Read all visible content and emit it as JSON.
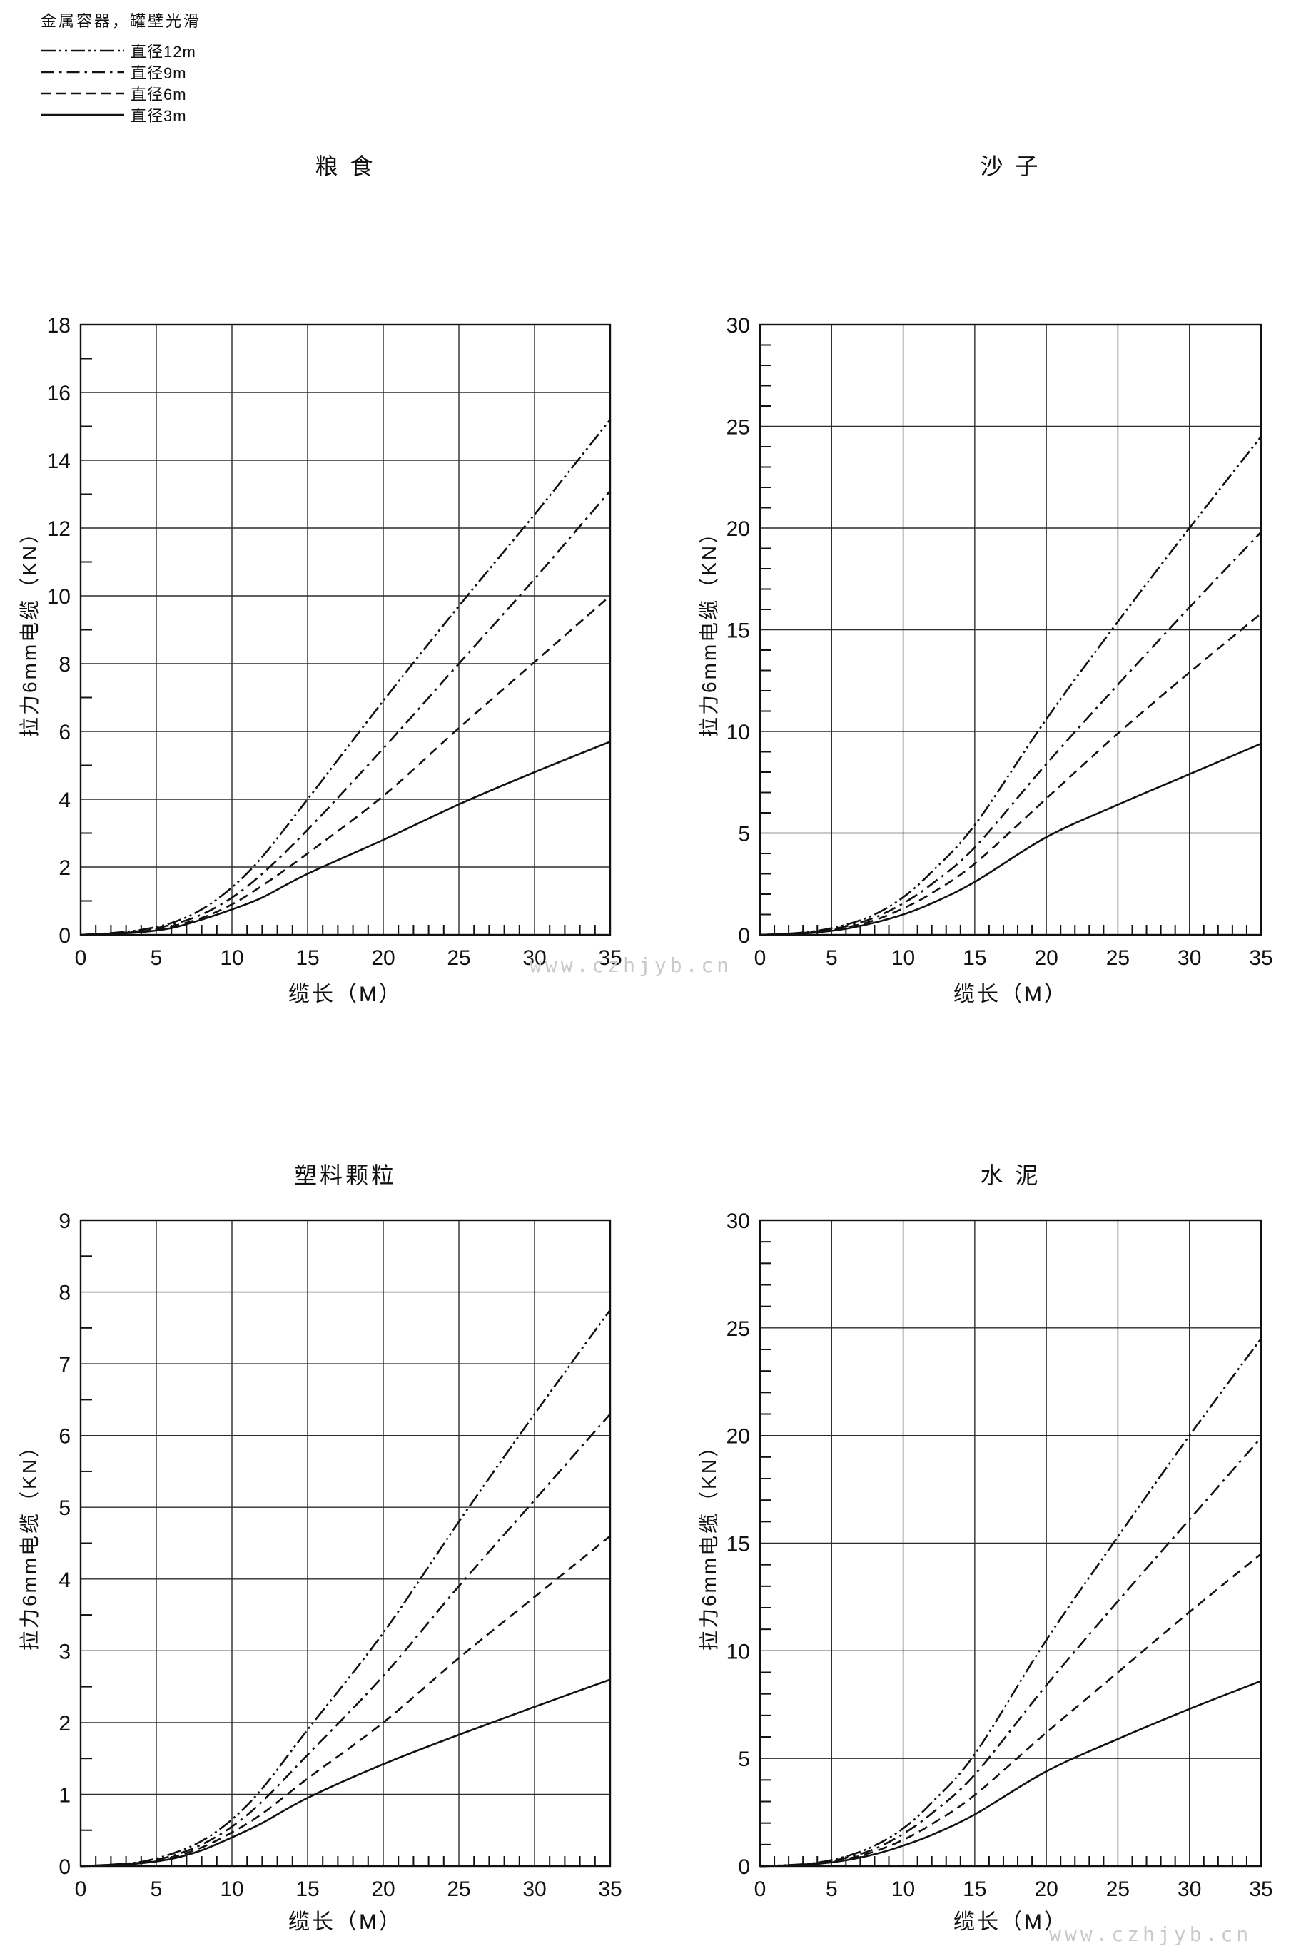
{
  "page": {
    "background": "#ffffff",
    "ink": "#111111",
    "grid_color": "#2b2b2b"
  },
  "watermark": {
    "text": "www.czhjyb.cn",
    "color": "#c9c9c9"
  },
  "legend": {
    "title": "金属容器，罐壁光滑",
    "items": [
      {
        "label": "直径12m",
        "style": "dash-dot-dot"
      },
      {
        "label": "直径9m",
        "style": "dash-dot"
      },
      {
        "label": "直径6m",
        "style": "dashed"
      },
      {
        "label": "直径3m",
        "style": "solid"
      }
    ]
  },
  "chart_data": [
    {
      "type": "line",
      "title": "粮 食",
      "xlabel": "缆长（M）",
      "ylabel": "拉力6mm电缆（KN）",
      "xlim": [
        0,
        35
      ],
      "ylim": [
        0,
        18
      ],
      "x_major_step": 5,
      "x_minor_step": 1,
      "y_major_step": 2,
      "y_minor_step": 1,
      "grid": true,
      "x": [
        0,
        2,
        4,
        6,
        8,
        10,
        12,
        15,
        20,
        25,
        30,
        35
      ],
      "series": [
        {
          "name": "直径12m",
          "line_style": "dash-dot-dot",
          "values": [
            0,
            0.05,
            0.15,
            0.35,
            0.75,
            1.4,
            2.3,
            4.0,
            6.9,
            9.7,
            12.4,
            15.2
          ]
        },
        {
          "name": "直径9m",
          "line_style": "dash-dot",
          "values": [
            0,
            0.04,
            0.12,
            0.3,
            0.6,
            1.1,
            1.8,
            3.1,
            5.5,
            8.0,
            10.5,
            13.1
          ]
        },
        {
          "name": "直径6m",
          "line_style": "dashed",
          "values": [
            0,
            0.04,
            0.1,
            0.25,
            0.5,
            0.9,
            1.45,
            2.4,
            4.1,
            6.1,
            8.05,
            10.0
          ]
        },
        {
          "name": "直径3m",
          "line_style": "solid",
          "values": [
            0,
            0.03,
            0.08,
            0.2,
            0.45,
            0.75,
            1.1,
            1.8,
            2.8,
            3.85,
            4.8,
            5.7
          ]
        }
      ]
    },
    {
      "type": "line",
      "title": "沙 子",
      "xlabel": "缆长（M）",
      "ylabel": "拉力6mm电缆（KN）",
      "xlim": [
        0,
        35
      ],
      "ylim": [
        0,
        30
      ],
      "x_major_step": 5,
      "x_minor_step": 1,
      "y_major_step": 5,
      "y_minor_step": 1,
      "grid": true,
      "x": [
        0,
        2,
        4,
        6,
        8,
        10,
        12,
        15,
        20,
        25,
        30,
        35
      ],
      "series": [
        {
          "name": "直径12m",
          "line_style": "dash-dot-dot",
          "values": [
            0,
            0.06,
            0.2,
            0.5,
            1.0,
            1.85,
            3.1,
            5.4,
            10.6,
            15.4,
            20.0,
            24.5
          ]
        },
        {
          "name": "直径9m",
          "line_style": "dash-dot",
          "values": [
            0,
            0.05,
            0.17,
            0.42,
            0.85,
            1.55,
            2.5,
            4.3,
            8.4,
            12.3,
            16.1,
            19.8
          ]
        },
        {
          "name": "直径6m",
          "line_style": "dashed",
          "values": [
            0,
            0.05,
            0.15,
            0.36,
            0.72,
            1.3,
            2.05,
            3.5,
            6.7,
            9.9,
            12.9,
            15.8
          ]
        },
        {
          "name": "直径3m",
          "line_style": "solid",
          "values": [
            0,
            0.04,
            0.12,
            0.3,
            0.6,
            1.0,
            1.55,
            2.6,
            4.8,
            6.4,
            7.9,
            9.4
          ]
        }
      ]
    },
    {
      "type": "line",
      "title": "塑料颗粒",
      "xlabel": "缆长（M）",
      "ylabel": "拉力6mm电缆（KN）",
      "xlim": [
        0,
        35
      ],
      "ylim": [
        0,
        9
      ],
      "x_major_step": 5,
      "x_minor_step": 1,
      "y_major_step": 1,
      "y_minor_step": 0.5,
      "grid": true,
      "x": [
        0,
        2,
        4,
        6,
        8,
        10,
        12,
        15,
        20,
        25,
        30,
        35
      ],
      "series": [
        {
          "name": "直径12m",
          "line_style": "dash-dot-dot",
          "values": [
            0,
            0.02,
            0.06,
            0.17,
            0.35,
            0.65,
            1.08,
            1.9,
            3.25,
            4.8,
            6.3,
            7.75
          ]
        },
        {
          "name": "直径9m",
          "line_style": "dash-dot",
          "values": [
            0,
            0.02,
            0.05,
            0.14,
            0.3,
            0.55,
            0.9,
            1.55,
            2.65,
            3.9,
            5.1,
            6.3
          ]
        },
        {
          "name": "直径6m",
          "line_style": "dashed",
          "values": [
            0,
            0.02,
            0.05,
            0.12,
            0.26,
            0.47,
            0.73,
            1.22,
            2.0,
            2.9,
            3.75,
            4.6
          ]
        },
        {
          "name": "直径3m",
          "line_style": "solid",
          "values": [
            0,
            0.01,
            0.04,
            0.1,
            0.22,
            0.4,
            0.6,
            0.95,
            1.42,
            1.83,
            2.22,
            2.6
          ]
        }
      ]
    },
    {
      "type": "line",
      "title": "水 泥",
      "xlabel": "缆长（M）",
      "ylabel": "拉力6mm电缆（KN）",
      "xlim": [
        0,
        35
      ],
      "ylim": [
        0,
        30
      ],
      "x_major_step": 5,
      "x_minor_step": 1,
      "y_major_step": 5,
      "y_minor_step": 1,
      "grid": true,
      "x": [
        0,
        2,
        4,
        6,
        8,
        10,
        12,
        15,
        20,
        25,
        30,
        35
      ],
      "series": [
        {
          "name": "直径12m",
          "line_style": "dash-dot-dot",
          "values": [
            0,
            0.05,
            0.16,
            0.45,
            0.95,
            1.75,
            2.95,
            5.2,
            10.5,
            15.3,
            20.0,
            24.5
          ]
        },
        {
          "name": "直径9m",
          "line_style": "dash-dot",
          "values": [
            0,
            0.04,
            0.14,
            0.38,
            0.8,
            1.5,
            2.45,
            4.25,
            8.4,
            12.3,
            16.1,
            19.9
          ]
        },
        {
          "name": "直径6m",
          "line_style": "dashed",
          "values": [
            0,
            0.04,
            0.12,
            0.32,
            0.68,
            1.22,
            1.95,
            3.3,
            6.2,
            9.0,
            11.8,
            14.5
          ]
        },
        {
          "name": "直径3m",
          "line_style": "solid",
          "values": [
            0,
            0.03,
            0.1,
            0.27,
            0.55,
            0.95,
            1.45,
            2.4,
            4.4,
            5.9,
            7.3,
            8.6
          ]
        }
      ]
    }
  ]
}
